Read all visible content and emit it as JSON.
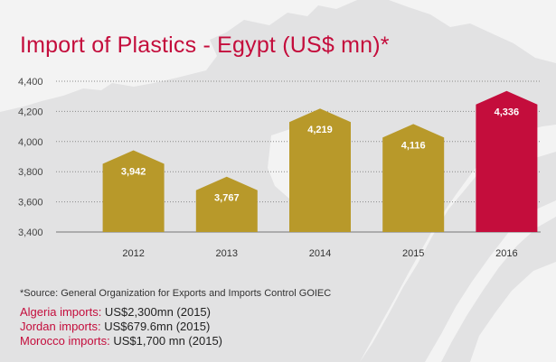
{
  "colors": {
    "title": "#c40d3c",
    "bar": "#b8992a",
    "highlight_bar": "#c40d3c",
    "background": "#e2e2e3",
    "map": "#f3f3f3"
  },
  "chart_data": {
    "type": "bar",
    "title": "Import of Plastics - Egypt (US$ mn)*",
    "categories": [
      "2012",
      "2013",
      "2014",
      "2015",
      "2016"
    ],
    "values": [
      3942,
      3767,
      4219,
      4116,
      4336
    ],
    "value_labels": [
      "3,942",
      "3,767",
      "4,219",
      "4,116",
      "4,336"
    ],
    "highlight_index": 4,
    "ylim": [
      3400,
      4400
    ],
    "yticks": [
      3400,
      3600,
      3800,
      4000,
      4200,
      4400
    ],
    "ytick_labels": [
      "3,400",
      "3,600",
      "3,800",
      "4,000",
      "4,200",
      "4,400"
    ],
    "grid": "horizontal dotted",
    "xlabel": "",
    "ylabel": ""
  },
  "footnote": {
    "source": "*Source: General Organization for Exports and Imports Control GOIEC"
  },
  "notes": [
    {
      "label": "Algeria imports:",
      "value": " US$2,300mn (2015)"
    },
    {
      "label": "Jordan imports:",
      "value": " US$679.6mn (2015)"
    },
    {
      "label": "Morocco  imports:",
      "value": " US$1,700 mn (2015)"
    }
  ]
}
